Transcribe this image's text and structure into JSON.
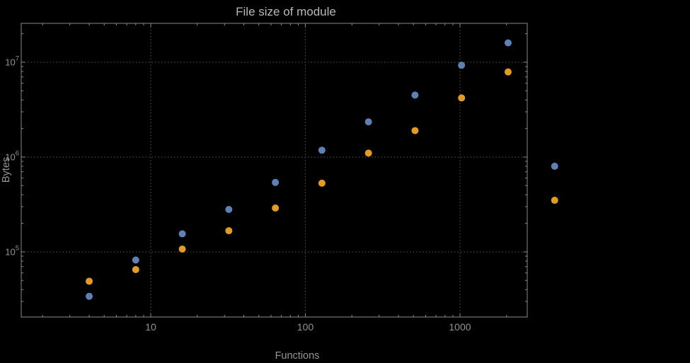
{
  "page": {
    "background_color": "#000000"
  },
  "style": {
    "frame_color": "#8a8a8a",
    "grid_color": "#5a5a5a",
    "tick_label_color": "#929292",
    "axis_label_color": "#979797",
    "title_color": "#b9b9b9",
    "series_blue_color": "#5e81b5",
    "series_orange_color": "#e19c24"
  },
  "chart_data": {
    "type": "scatter",
    "title": "File size of module",
    "xlabel": "Functions",
    "ylabel": "Bytes",
    "x_scale": "log",
    "y_scale": "log",
    "grid": true,
    "grid_style": "dotted",
    "legend": "none",
    "axes": {
      "x_log_range": [
        0.1625,
        3.435
      ],
      "y_log_range": [
        4.313,
        7.41
      ],
      "x_ticks": [
        10,
        100,
        1000
      ],
      "x_tick_labels": [
        "10",
        "100",
        "1000"
      ],
      "y_ticks": [
        100000,
        1000000,
        10000000
      ],
      "y_tick_base": "10",
      "y_tick_exponents": [
        "5",
        "6",
        "7"
      ]
    },
    "x": [
      4,
      8,
      16,
      32,
      64,
      128,
      256,
      512,
      1024,
      2048,
      4096
    ],
    "series": [
      {
        "name": "blue",
        "color": "#5e81b5",
        "values": [
          34000,
          82000,
          155000,
          280000,
          540000,
          1180000,
          2350000,
          4500000,
          9300000,
          16000000,
          800000
        ]
      },
      {
        "name": "orange",
        "color": "#e19c24",
        "values": [
          49000,
          65000,
          107000,
          167000,
          290000,
          530000,
          1100000,
          1900000,
          4200000,
          7900000,
          350000
        ]
      }
    ]
  }
}
